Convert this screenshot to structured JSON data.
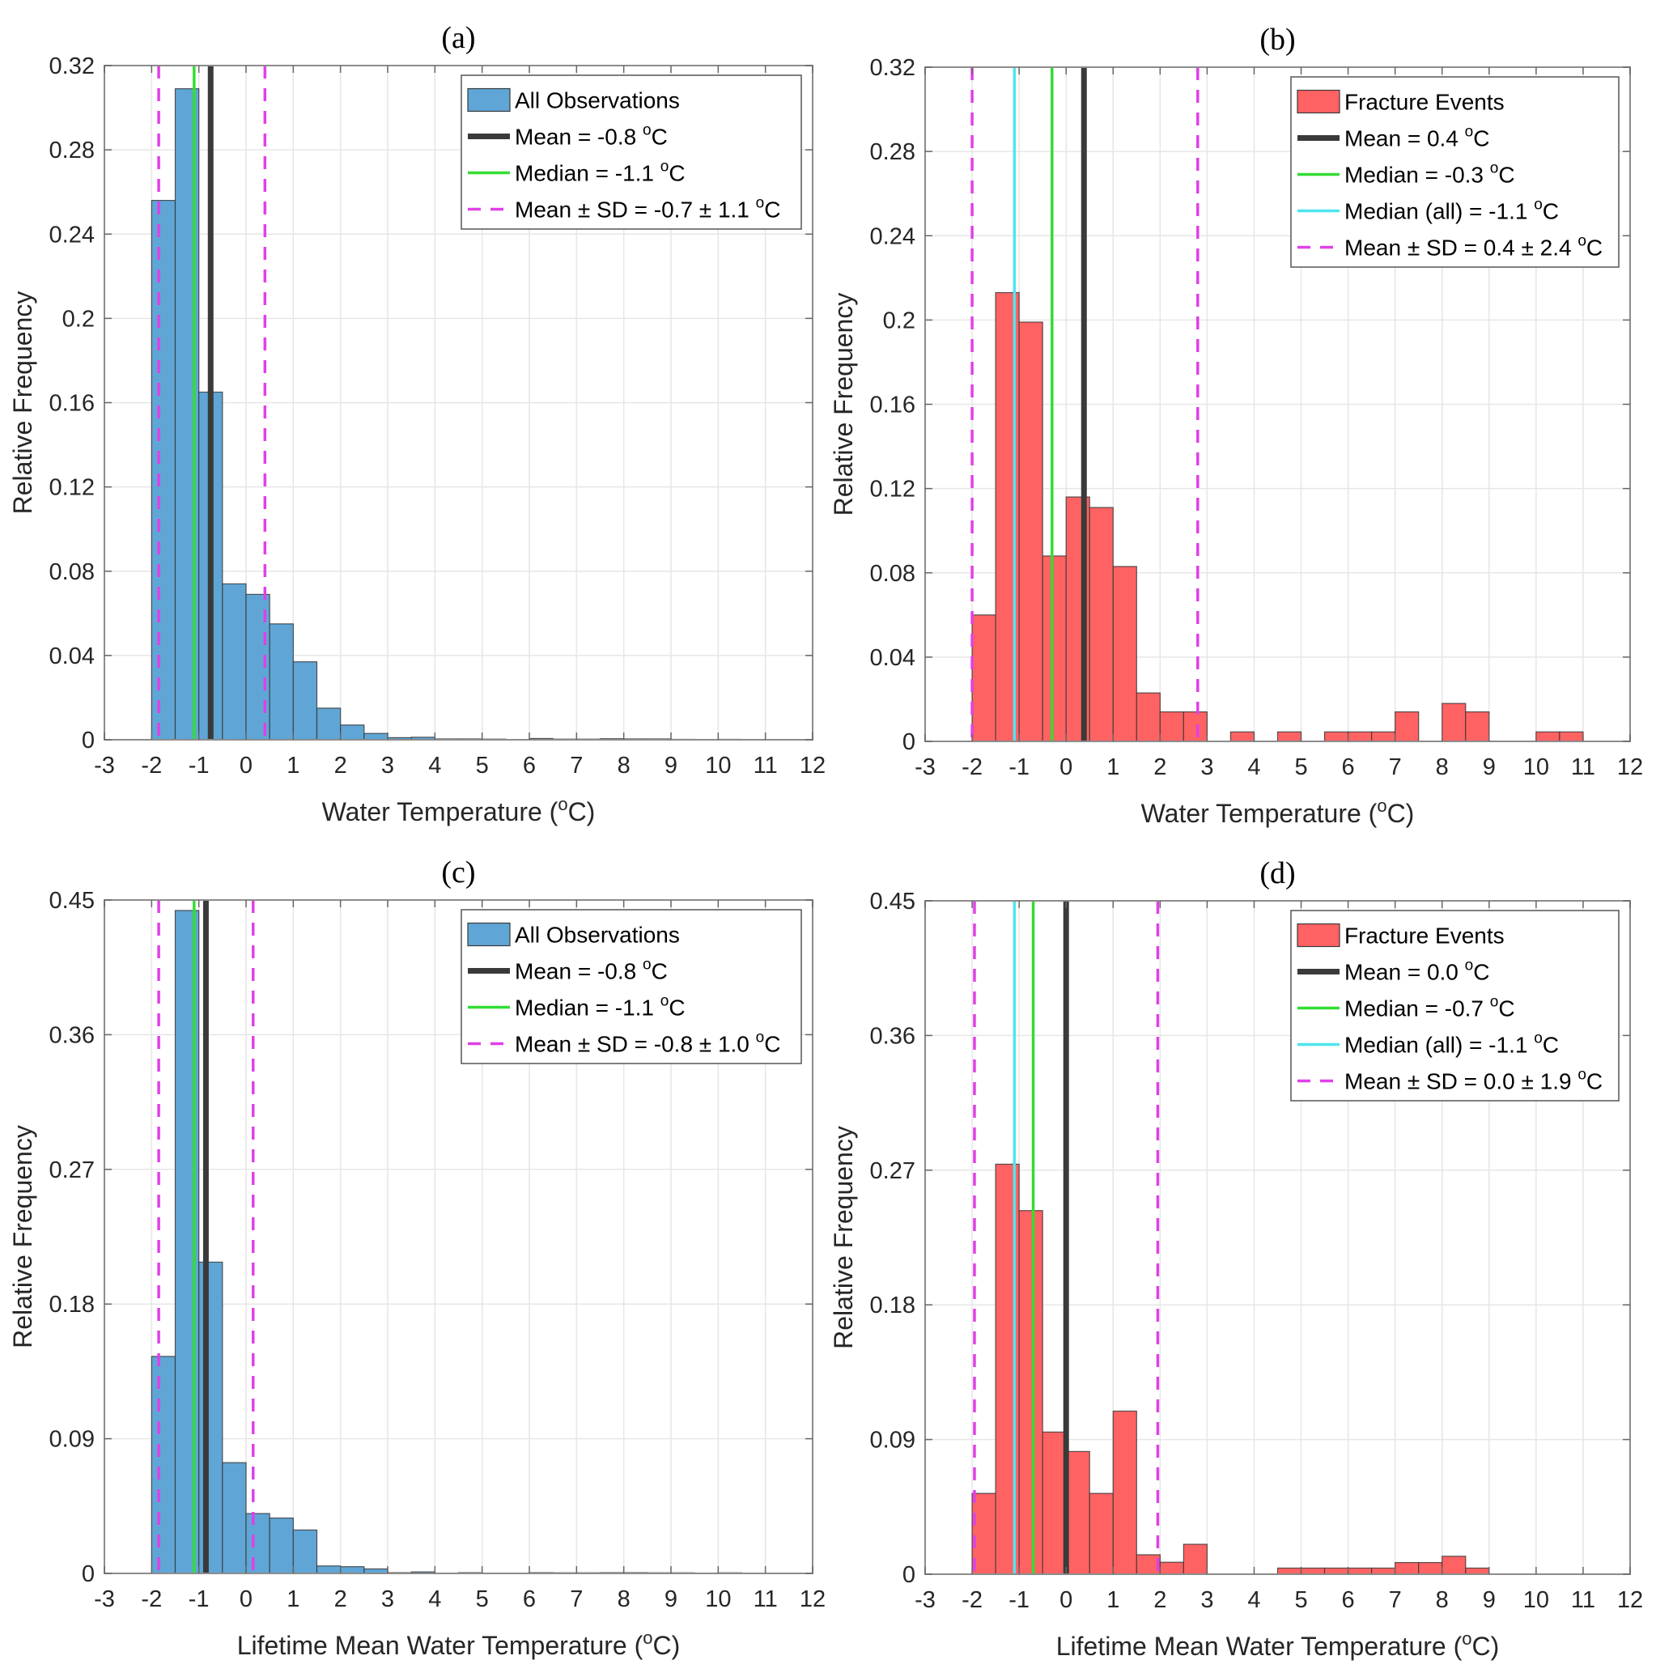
{
  "figure": {
    "colors": {
      "all_fill": "#5fa6d6",
      "fracture_fill": "#ff6262",
      "bar_edge": "#3a3a3a",
      "mean": "#3a3a3a",
      "median": "#33dd33",
      "median_all": "#4ee5f0",
      "sd": "#e040e8",
      "grid": "#e6e6e6",
      "axis": "#8c8c8c"
    }
  },
  "chart_data": [
    {
      "id": "a",
      "type": "bar",
      "title": "(a)",
      "xlabel": "Water Temperature (°C)",
      "xlabel_main": "Water Temperature (",
      "xlabel_sup": "o",
      "xlabel_end": "C)",
      "ylabel": "Relative Frequency",
      "xlim": [
        -3,
        12
      ],
      "ylim": [
        0,
        0.32
      ],
      "xticks": [
        "-3",
        "-2",
        "-1",
        "0",
        "1",
        "2",
        "3",
        "4",
        "5",
        "6",
        "7",
        "8",
        "9",
        "10",
        "11",
        "12"
      ],
      "yticks": [
        "0",
        "0.04",
        "0.08",
        "0.12",
        "0.16",
        "0.2",
        "0.24",
        "0.28",
        "0.32"
      ],
      "grid": true,
      "legend_position": "top-right",
      "fill": "all",
      "bin_start": -2,
      "bin_width": 0.5,
      "values": [
        0.256,
        0.309,
        0.165,
        0.074,
        0.069,
        0.055,
        0.037,
        0.015,
        0.007,
        0.003,
        0.001,
        0.0012,
        0.0004,
        0.0004,
        0.0003,
        0.0001,
        0.0006,
        0.0003,
        0.0003,
        0.0005,
        0.0004,
        0.0004,
        0.0002,
        0,
        0.0002
      ],
      "lines": [
        {
          "kind": "sd",
          "x": -1.85
        },
        {
          "kind": "sd",
          "x": 0.4
        },
        {
          "kind": "median",
          "x": -1.1
        },
        {
          "kind": "mean",
          "x": -0.75
        }
      ],
      "legend": [
        {
          "kind": "bar",
          "label": "All Observations"
        },
        {
          "kind": "mean",
          "label": "Mean = -0.8 ",
          "sup": "o",
          "unit": "C"
        },
        {
          "kind": "median",
          "label": "Median = -1.1 ",
          "sup": "o",
          "unit": "C"
        },
        {
          "kind": "sd",
          "label": "Mean ± SD  = -0.7 ± 1.1 ",
          "sup": "o",
          "unit": "C"
        }
      ]
    },
    {
      "id": "b",
      "type": "bar",
      "title": "(b)",
      "xlabel": "Water Temperature (°C)",
      "xlabel_main": "Water Temperature (",
      "xlabel_sup": "o",
      "xlabel_end": "C)",
      "ylabel": "Relative Frequency",
      "xlim": [
        -3,
        12
      ],
      "ylim": [
        0,
        0.32
      ],
      "xticks": [
        "-3",
        "-2",
        "-1",
        "0",
        "1",
        "2",
        "3",
        "4",
        "5",
        "6",
        "7",
        "8",
        "9",
        "10",
        "11",
        "12"
      ],
      "yticks": [
        "0",
        "0.04",
        "0.08",
        "0.12",
        "0.16",
        "0.2",
        "0.24",
        "0.28",
        "0.32"
      ],
      "grid": true,
      "legend_position": "top-right",
      "fill": "fracture",
      "bin_start": -2,
      "bin_width": 0.5,
      "values": [
        0.06,
        0.213,
        0.199,
        0.088,
        0.116,
        0.111,
        0.083,
        0.023,
        0.014,
        0.014,
        0,
        0.0045,
        0,
        0.0045,
        0,
        0.0045,
        0.0045,
        0.0045,
        0.014,
        0,
        0.018,
        0.014,
        0,
        0,
        0.0045,
        0.0045
      ],
      "lines": [
        {
          "kind": "sd",
          "x": -2.0
        },
        {
          "kind": "sd",
          "x": 2.8
        },
        {
          "kind": "median_all",
          "x": -1.1
        },
        {
          "kind": "median",
          "x": -0.3
        },
        {
          "kind": "mean",
          "x": 0.38
        }
      ],
      "legend": [
        {
          "kind": "bar",
          "label": "Fracture Events"
        },
        {
          "kind": "mean",
          "label": "Mean = 0.4 ",
          "sup": "o",
          "unit": "C"
        },
        {
          "kind": "median",
          "label": "Median = -0.3 ",
          "sup": "o",
          "unit": "C"
        },
        {
          "kind": "median_all",
          "label": "Median (all) = -1.1 ",
          "sup": "o",
          "unit": "C"
        },
        {
          "kind": "sd",
          "label": "Mean ±  SD  = 0.4 ± 2.4 ",
          "sup": "o",
          "unit": "C"
        }
      ]
    },
    {
      "id": "c",
      "type": "bar",
      "title": "(c)",
      "xlabel": "Lifetime Mean Water Temperature (°C)",
      "xlabel_main": "Lifetime Mean Water Temperature (",
      "xlabel_sup": "o",
      "xlabel_end": "C)",
      "ylabel": "Relative Frequency",
      "xlim": [
        -3,
        12
      ],
      "ylim": [
        0,
        0.45
      ],
      "xticks": [
        "-3",
        "-2",
        "-1",
        "0",
        "1",
        "2",
        "3",
        "4",
        "5",
        "6",
        "7",
        "8",
        "9",
        "10",
        "11",
        "12"
      ],
      "yticks": [
        "0",
        "0.09",
        "0.18",
        "0.27",
        "0.36",
        "0.45"
      ],
      "grid": true,
      "legend_position": "top-right",
      "fill": "all",
      "bin_start": -2,
      "bin_width": 0.5,
      "values": [
        0.145,
        0.443,
        0.208,
        0.074,
        0.04,
        0.037,
        0.029,
        0.005,
        0.0045,
        0.003,
        0.0005,
        0.001,
        0,
        0.0005,
        0,
        0,
        0.0005,
        0.0004,
        0.0004,
        0.0005,
        0.0005,
        0.0004,
        0.0004,
        0,
        0.0004
      ],
      "lines": [
        {
          "kind": "sd",
          "x": -1.85
        },
        {
          "kind": "sd",
          "x": 0.15
        },
        {
          "kind": "median",
          "x": -1.1
        },
        {
          "kind": "mean",
          "x": -0.85
        }
      ],
      "legend": [
        {
          "kind": "bar",
          "label": "All Observations"
        },
        {
          "kind": "mean",
          "label": "Mean = -0.8 ",
          "sup": "o",
          "unit": "C"
        },
        {
          "kind": "median",
          "label": "Median = -1.1 ",
          "sup": "o",
          "unit": "C"
        },
        {
          "kind": "sd",
          "label": "Mean ±  SD  = -0.8 ± 1.0 ",
          "sup": "o",
          "unit": "C"
        }
      ]
    },
    {
      "id": "d",
      "type": "bar",
      "title": "(d)",
      "xlabel": "Lifetime Mean Water Temperature (°C)",
      "xlabel_main": "Lifetime Mean Water Temperature (",
      "xlabel_sup": "o",
      "xlabel_end": "C)",
      "ylabel": "Relative Frequency",
      "xlim": [
        -3,
        12
      ],
      "ylim": [
        0,
        0.45
      ],
      "xticks": [
        "-3",
        "-2",
        "-1",
        "0",
        "1",
        "2",
        "3",
        "4",
        "5",
        "6",
        "7",
        "8",
        "9",
        "10",
        "11",
        "12"
      ],
      "yticks": [
        "0",
        "0.09",
        "0.18",
        "0.27",
        "0.36",
        "0.45"
      ],
      "grid": true,
      "legend_position": "top-right",
      "fill": "fracture",
      "bin_start": -2,
      "bin_width": 0.5,
      "values": [
        0.054,
        0.274,
        0.243,
        0.095,
        0.082,
        0.054,
        0.109,
        0.013,
        0.008,
        0.02,
        0,
        0,
        0,
        0.0041,
        0.0041,
        0.0041,
        0.0041,
        0.0041,
        0.0078,
        0.0078,
        0.012,
        0.0041
      ],
      "lines": [
        {
          "kind": "sd",
          "x": -1.95
        },
        {
          "kind": "sd",
          "x": 1.95
        },
        {
          "kind": "median_all",
          "x": -1.1
        },
        {
          "kind": "median",
          "x": -0.7
        },
        {
          "kind": "mean",
          "x": 0.0
        }
      ],
      "legend": [
        {
          "kind": "bar",
          "label": "Fracture Events"
        },
        {
          "kind": "mean",
          "label": "Mean = 0.0 ",
          "sup": "o",
          "unit": "C"
        },
        {
          "kind": "median",
          "label": "Median = -0.7 ",
          "sup": "o",
          "unit": "C"
        },
        {
          "kind": "median_all",
          "label": "Median (all) = -1.1 ",
          "sup": "o",
          "unit": "C"
        },
        {
          "kind": "sd",
          "label": "Mean ±  SD = 0.0 ± 1.9 ",
          "sup": "o",
          "unit": "C"
        }
      ]
    }
  ]
}
